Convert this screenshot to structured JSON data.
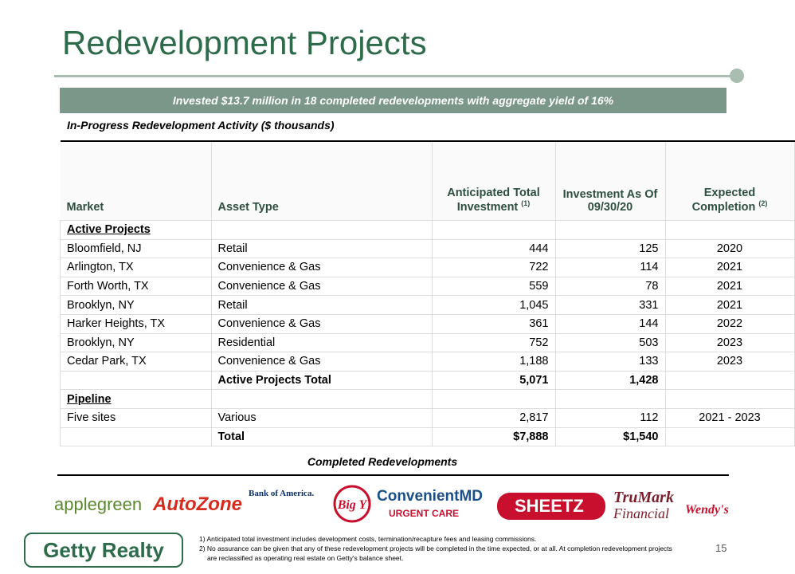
{
  "header": {
    "title": "Redevelopment Projects"
  },
  "banner": "Invested $13.7 million in 18 completed redevelopments with aggregate yield of 16%",
  "subtitle": "In-Progress Redevelopment Activity ($ thousands)",
  "table": {
    "columns": [
      {
        "label": "Market"
      },
      {
        "label": "Asset Type"
      },
      {
        "label": "Anticipated Total Investment",
        "note": "(1)"
      },
      {
        "label": "Investment As Of 09/30/20"
      },
      {
        "label": "Expected Completion",
        "note": "(2)"
      }
    ],
    "sections": [
      {
        "title": "Active Projects",
        "rows": [
          [
            "Bloomfield, NJ",
            "Retail",
            "444",
            "125",
            "2020"
          ],
          [
            "Arlington, TX",
            "Convenience & Gas",
            "722",
            "114",
            "2021"
          ],
          [
            "Forth Worth, TX",
            "Convenience & Gas",
            "559",
            "78",
            "2021"
          ],
          [
            "Brooklyn, NY",
            "Retail",
            "1,045",
            "331",
            "2021"
          ],
          [
            "Harker Heights, TX",
            "Convenience & Gas",
            "361",
            "144",
            "2022"
          ],
          [
            "Brooklyn, NY",
            "Residential",
            "752",
            "503",
            "2023"
          ],
          [
            "Cedar Park, TX",
            "Convenience & Gas",
            "1,188",
            "133",
            "2023"
          ]
        ],
        "total": [
          "Active Projects Total",
          "5,071",
          "1,428"
        ]
      },
      {
        "title": "Pipeline",
        "rows": [
          [
            "Five sites",
            "Various",
            "2,817",
            "112",
            "2021 - 2023"
          ]
        ],
        "total": [
          "Total",
          "$7,888",
          "$1,540"
        ]
      }
    ]
  },
  "completed": "Completed Redevelopments",
  "logos": [
    "applegreen",
    "AutoZone",
    "Bank of America.",
    "Big Y",
    "ConvenientMD",
    "URGENT CARE",
    "SHEETZ",
    "TruMark",
    "Financial",
    "Wendy's"
  ],
  "footnotes": [
    "1) Anticipated total investment includes development costs, termination/recapture fees and leasing commissions.",
    "2) No assurance can be given that any of these redevelopment projects will be completed in the time expected, or at all. At completion redevelopment projects are reclassified as operating real estate on Getty's balance sheet."
  ],
  "company": "Getty Realty",
  "page_number": "15"
}
